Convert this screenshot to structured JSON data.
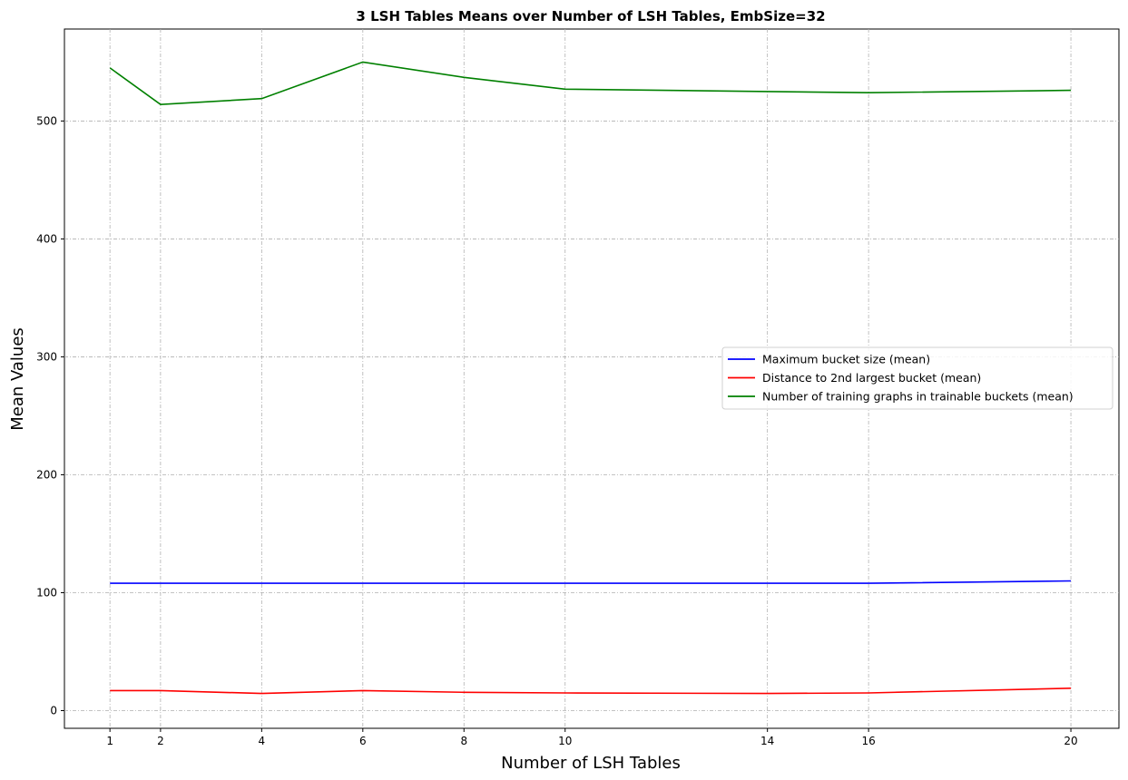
{
  "chart_data": {
    "type": "line",
    "title": "3 LSH Tables Means over Number of LSH Tables, EmbSize=32",
    "xlabel": "Number of LSH Tables",
    "ylabel": "Mean Values",
    "x": [
      1,
      2,
      4,
      6,
      8,
      10,
      14,
      16,
      20
    ],
    "xticks": [
      1,
      2,
      4,
      6,
      8,
      10,
      14,
      16,
      20
    ],
    "yticks": [
      0,
      100,
      200,
      300,
      400,
      500
    ],
    "xlim": [
      0.1,
      20.95
    ],
    "ylim": [
      -15,
      578
    ],
    "grid": true,
    "legend_position": "center-right",
    "series": [
      {
        "name": "Maximum bucket size (mean)",
        "color": "#0000ff",
        "values": [
          108,
          108,
          108,
          108,
          108,
          108,
          108,
          108,
          110
        ]
      },
      {
        "name": "Distance to 2nd largest bucket (mean)",
        "color": "#ff0000",
        "values": [
          17,
          17,
          14.5,
          17,
          15.5,
          15,
          14.5,
          15,
          19
        ]
      },
      {
        "name": "Number of training graphs in trainable buckets (mean)",
        "color": "#008000",
        "values": [
          545,
          514,
          519,
          550,
          537,
          527,
          525,
          524,
          526
        ]
      }
    ]
  }
}
